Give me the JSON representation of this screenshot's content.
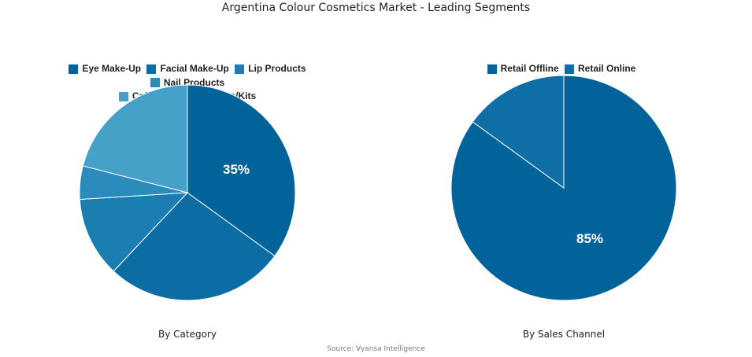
{
  "title": "Argentina Colour Cosmetics Market - Leading Segments",
  "source": "Source: Vyansa Intelligence",
  "chart_data": [
    {
      "type": "pie",
      "title": "By Category",
      "categories": [
        "Eye Make-Up",
        "Facial Make-Up",
        "Lip Products",
        "Nail Products",
        "Colour Cosmetics Sets/Kits"
      ],
      "values": [
        35,
        27,
        12,
        5,
        21
      ],
      "colors": [
        "#02629a",
        "#0b6da4",
        "#1a7eb0",
        "#2b8cbb",
        "#45a1c8"
      ],
      "data_labels": [
        "35%",
        "",
        "",
        "",
        ""
      ],
      "legend_position": "top"
    },
    {
      "type": "pie",
      "title": "By Sales Channel",
      "categories": [
        "Retail Offline",
        "Retail Online"
      ],
      "values": [
        85,
        15
      ],
      "colors": [
        "#02629a",
        "#0e6ea5"
      ],
      "data_labels": [
        "85%",
        ""
      ],
      "legend_position": "top"
    }
  ],
  "legend_left": [
    "Eye Make-Up",
    "Facial Make-Up",
    "Lip Products",
    "Nail Products",
    "Colour Cosmetics Sets/Kits"
  ],
  "legend_right": [
    "Retail Offline",
    "Retail Online"
  ],
  "captions": {
    "left": "By Category",
    "right": "By Sales Channel"
  },
  "labels": {
    "left_main": "35%",
    "right_main": "85%"
  }
}
